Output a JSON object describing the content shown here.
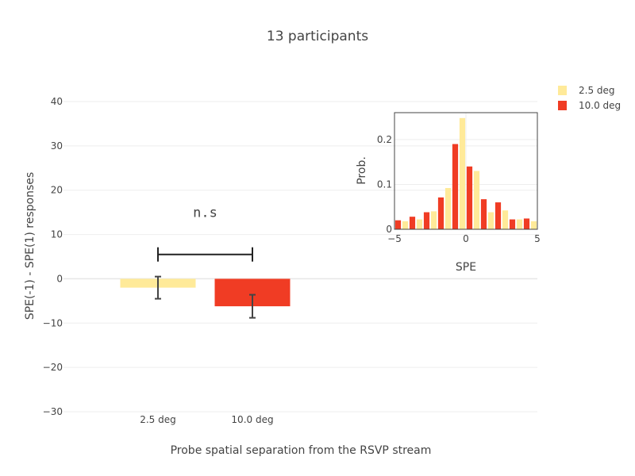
{
  "chart_data": [
    {
      "type": "bar",
      "title": "13 participants",
      "xlabel": "Probe spatial separation from the RSVP stream",
      "ylabel": "SPE(-1) - SPE(1) responses",
      "ylim": [
        -30,
        40
      ],
      "yticks": [
        -30,
        -20,
        -10,
        0,
        10,
        20,
        30,
        40
      ],
      "ytick_labels": [
        "−30",
        "−20",
        "−10",
        "0",
        "10",
        "20",
        "30",
        "40"
      ],
      "categories": [
        "2.5 deg",
        "10.0 deg"
      ],
      "values": [
        -2.0,
        -6.2
      ],
      "error_high": [
        0.5,
        -3.6
      ],
      "error_low": [
        -4.5,
        -8.8
      ],
      "colors": [
        "#FFEA99",
        "#F03C24"
      ],
      "grid": true,
      "annotation": {
        "text": "n.s",
        "x": 0.5,
        "y": 15.0
      },
      "bracket_y": 5.5
    },
    {
      "type": "bar",
      "xlabel": "SPE",
      "ylabel": "Prob.",
      "xlim": [
        -5,
        5
      ],
      "ylim": [
        0,
        0.26
      ],
      "xticks": [
        -5,
        0,
        5
      ],
      "xtick_labels": [
        "−5",
        "0",
        "5"
      ],
      "yticks": [
        0,
        0.1,
        0.2
      ],
      "ytick_labels": [
        "0",
        "0.1",
        "0.2"
      ],
      "x": [
        -4,
        -3,
        -2,
        -1,
        0,
        1,
        2,
        3,
        4,
        5
      ],
      "series": [
        {
          "name": "2.5 deg",
          "color": "#FFEA99",
          "values": [
            0.018,
            0.022,
            0.04,
            0.092,
            0.248,
            0.13,
            0.038,
            0.042,
            0.022,
            0.018
          ]
        },
        {
          "name": "10.0 deg",
          "color": "#F03C24",
          "values": [
            0.02,
            0.028,
            0.038,
            0.071,
            0.19,
            0.14,
            0.067,
            0.06,
            0.022,
            0.024
          ]
        }
      ],
      "grid": true
    }
  ],
  "legend": {
    "placement": "top-right",
    "items": [
      {
        "label": "2.5 deg",
        "color": "#FFEA99"
      },
      {
        "label": "10.0 deg",
        "color": "#F03C24"
      }
    ]
  }
}
